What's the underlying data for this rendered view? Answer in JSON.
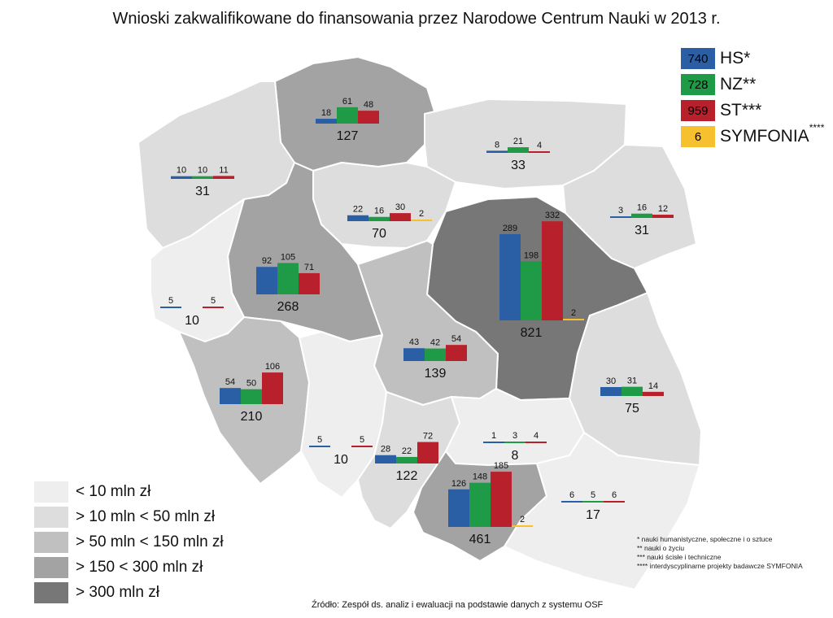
{
  "title": "Wnioski zakwalifikowane do finansowania przez Narodowe Centrum Nauki w 2013 r.",
  "colors": {
    "hs": "#2a5fa5",
    "nz": "#1f9b48",
    "st": "#b8202b",
    "symfonia": "#f6c02e",
    "scale": [
      "#eeeeee",
      "#dddddd",
      "#c0c0c0",
      "#a3a3a3",
      "#777777"
    ]
  },
  "legend": [
    {
      "code": "hs",
      "value": "740",
      "label": "HS*",
      "sup": ""
    },
    {
      "code": "nz",
      "value": "728",
      "label": "NZ**",
      "sup": ""
    },
    {
      "code": "st",
      "value": "959",
      "label": "ST***",
      "sup": ""
    },
    {
      "code": "symfonia",
      "value": "6",
      "label": "SYMFONIA",
      "sup": "****"
    }
  ],
  "scale_legend": [
    {
      "label": "< 10 mln zł"
    },
    {
      "label": "> 10 mln < 50 mln zł"
    },
    {
      "label": "> 50 mln < 150 mln zł"
    },
    {
      "label": "> 150 < 300 mln zł"
    },
    {
      "label": "> 300 mln zł"
    }
  ],
  "footnotes": [
    "* nauki humanistyczne, społeczne i o sztuce",
    "** nauki o życiu",
    "*** nauki ścisłe i techniczne",
    "**** interdyscyplinarne projekty badawcze SYMFONIA"
  ],
  "source": "Źródło: Zespół ds. analiz i ewaluacji na podstawie danych z systemu OSF",
  "chart_data": {
    "type": "bar",
    "series_names": [
      "HS*",
      "NZ**",
      "ST***",
      "SYMFONIA"
    ],
    "regions": [
      {
        "hs": "18",
        "nz": "61",
        "st": "48",
        "sym": "",
        "total": "127",
        "scale": 3
      },
      {
        "hs": "8",
        "nz": "21",
        "st": "4",
        "sym": "",
        "total": "33",
        "scale": 1
      },
      {
        "hs": "10",
        "nz": "10",
        "st": "11",
        "sym": "",
        "total": "31",
        "scale": 1
      },
      {
        "hs": "22",
        "nz": "16",
        "st": "30",
        "sym": "2",
        "total": "70",
        "scale": 1
      },
      {
        "hs": "3",
        "nz": "16",
        "st": "12",
        "sym": "",
        "total": "31",
        "scale": 1
      },
      {
        "hs": "289",
        "nz": "198",
        "st": "332",
        "sym": "2",
        "total": "821",
        "scale": 4
      },
      {
        "hs": "92",
        "nz": "105",
        "st": "71",
        "sym": "",
        "total": "268",
        "scale": 3
      },
      {
        "hs": "5",
        "nz": "",
        "st": "5",
        "sym": "",
        "total": "10",
        "scale": 0
      },
      {
        "hs": "43",
        "nz": "42",
        "st": "54",
        "sym": "",
        "total": "139",
        "scale": 2
      },
      {
        "hs": "54",
        "nz": "50",
        "st": "106",
        "sym": "",
        "total": "210",
        "scale": 2
      },
      {
        "hs": "30",
        "nz": "31",
        "st": "14",
        "sym": "",
        "total": "75",
        "scale": 1
      },
      {
        "hs": "5",
        "nz": "",
        "st": "5",
        "sym": "",
        "total": "10",
        "scale": 0
      },
      {
        "hs": "28",
        "nz": "22",
        "st": "72",
        "sym": "",
        "total": "122",
        "scale": 1
      },
      {
        "hs": "1",
        "nz": "3",
        "st": "4",
        "sym": "",
        "total": "8",
        "scale": 0
      },
      {
        "hs": "126",
        "nz": "148",
        "st": "185",
        "sym": "2",
        "total": "461",
        "scale": 3
      },
      {
        "hs": "6",
        "nz": "5",
        "st": "6",
        "sym": "",
        "total": "17",
        "scale": 0
      }
    ]
  }
}
